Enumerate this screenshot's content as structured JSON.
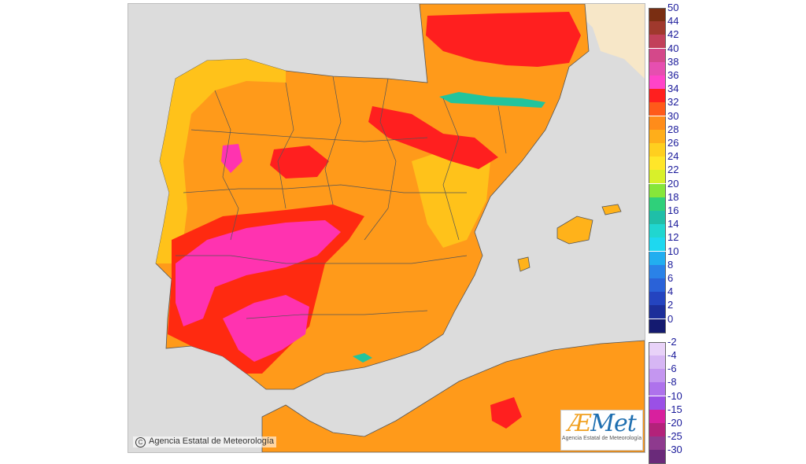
{
  "map": {
    "copyright": "Agencia Estatal de Meteorología",
    "logo_text": "AEMet",
    "logo_subtitle": "Agencia Estatal de Meteorología",
    "colors": {
      "sea": "#dcdcdc",
      "france": "#f7e7c8",
      "t_26_28": "#ffc21a",
      "t_28_30": "#ff9a1a",
      "t_30_32": "#ff7a10",
      "t_32_34": "#ff1f1f",
      "t_34_36": "#ff33b0",
      "t_16_18": "#22c49c"
    }
  },
  "legend": {
    "upper": [
      {
        "label": "50",
        "color": "#7a2e12"
      },
      {
        "label": "44",
        "color": "#a0392d"
      },
      {
        "label": "42",
        "color": "#c2405a"
      },
      {
        "label": "40",
        "color": "#d4488a"
      },
      {
        "label": "38",
        "color": "#e64fb0"
      },
      {
        "label": "36",
        "color": "#ff44c8"
      },
      {
        "label": "34",
        "color": "#ff1f1f"
      },
      {
        "label": "32",
        "color": "#ff5a1a"
      },
      {
        "label": "30",
        "color": "#ff8c1a"
      },
      {
        "label": "28",
        "color": "#ffae1a"
      },
      {
        "label": "26",
        "color": "#ffcf1f"
      },
      {
        "label": "24",
        "color": "#ffe629"
      },
      {
        "label": "22",
        "color": "#d8f02a"
      },
      {
        "label": "20",
        "color": "#86e63a"
      },
      {
        "label": "18",
        "color": "#2fd07a"
      },
      {
        "label": "16",
        "color": "#1fbfa8"
      },
      {
        "label": "14",
        "color": "#20d6d0"
      },
      {
        "label": "12",
        "color": "#1ed8f0"
      },
      {
        "label": "10",
        "color": "#22aef0"
      },
      {
        "label": "8",
        "color": "#2a82e8"
      },
      {
        "label": "6",
        "color": "#2a62d8"
      },
      {
        "label": "4",
        "color": "#2444c0"
      },
      {
        "label": "2",
        "color": "#1c2e9a"
      },
      {
        "label": "0",
        "color": "#141a70"
      }
    ],
    "lower": [
      {
        "label": "-2",
        "color": "#e8d2f8"
      },
      {
        "label": "-4",
        "color": "#d6b6f4"
      },
      {
        "label": "-6",
        "color": "#c496f0"
      },
      {
        "label": "-8",
        "color": "#ae72ec"
      },
      {
        "label": "-10",
        "color": "#9a50e6"
      },
      {
        "label": "-15",
        "color": "#d8209e"
      },
      {
        "label": "-20",
        "color": "#b3227a"
      },
      {
        "label": "-25",
        "color": "#8e3a8e"
      },
      {
        "label": "-30",
        "color": "#6a2a7a"
      }
    ]
  }
}
